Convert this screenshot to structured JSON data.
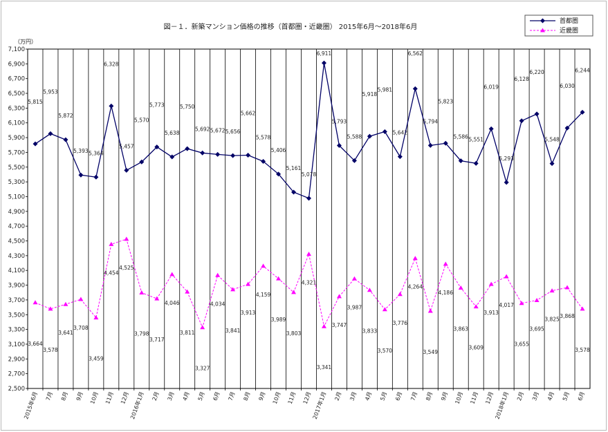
{
  "chart_data": {
    "type": "line",
    "title": "図－１．新築マンション価格の推移（首都圏・近畿圏） 2015年6月～2018年6月",
    "unit_label": "（万円）",
    "ylim": [
      2500,
      7100
    ],
    "y_ticks": [
      "7,100",
      "6,900",
      "6,700",
      "6,500",
      "6,300",
      "6,100",
      "5,900",
      "5,700",
      "5,500",
      "5,300",
      "5,100",
      "4,900",
      "4,700",
      "4,500",
      "4,300",
      "4,100",
      "3,900",
      "3,700",
      "3,500",
      "3,300",
      "3,100",
      "2,900",
      "2,700",
      "2,500"
    ],
    "categories": [
      "2015年6月",
      "7月",
      "8月",
      "9月",
      "10月",
      "11月",
      "12月",
      "2016年1月",
      "2月",
      "3月",
      "4月",
      "5月",
      "6月",
      "7月",
      "8月",
      "9月",
      "10月",
      "11月",
      "12月",
      "2017年1月",
      "2月",
      "3月",
      "4月",
      "5月",
      "6月",
      "7月",
      "8月",
      "9月",
      "10月",
      "11月",
      "12月",
      "2018年1月",
      "2月",
      "3月",
      "4月",
      "5月",
      "6月"
    ],
    "grid": "vertical",
    "legend_position": "top-right",
    "series": [
      {
        "name": "首都圏",
        "color": "#000066",
        "marker": "diamond",
        "line_style": "solid",
        "label_position": "above",
        "values": [
          5815,
          5953,
          5872,
          5393,
          5364,
          6328,
          5457,
          5570,
          5773,
          5638,
          5750,
          5692,
          5672,
          5656,
          5662,
          5578,
          5406,
          5161,
          5078,
          6911,
          5793,
          5588,
          5918,
          5981,
          5642,
          6562,
          5794,
          5823,
          5586,
          5551,
          6019,
          5293,
          6128,
          6220,
          5548,
          6030,
          6244
        ],
        "labels": [
          "5,815",
          "5,953",
          "5,872",
          "5,393",
          "5,364",
          "6,328",
          "5,457",
          "5,570",
          "5,773",
          "5,638",
          "5,750",
          "5,692",
          "5,672",
          "5,656",
          "5,662",
          "5,578",
          "5,406",
          "5,161",
          "5,078",
          "6,911",
          "5,793",
          "5,588",
          "5,918",
          "5,981",
          "5,642",
          "6,562",
          "5,794",
          "5,823",
          "5,586",
          "5,551",
          "6,019",
          "5,293",
          "6,128",
          "6,220",
          "5,548",
          "6,030",
          "6,244"
        ]
      },
      {
        "name": "近畿圏",
        "color": "#ff00ff",
        "marker": "triangle",
        "line_style": "dashed",
        "label_position": "below",
        "values": [
          3664,
          3578,
          3641,
          3708,
          3459,
          4454,
          4525,
          3798,
          3717,
          4046,
          3811,
          3327,
          4034,
          3841,
          3913,
          4159,
          3989,
          3803,
          4321,
          3341,
          3747,
          3987,
          3833,
          3570,
          3776,
          4264,
          3549,
          4186,
          3863,
          3609,
          3913,
          4017,
          3655,
          3695,
          3825,
          3868,
          3578
        ],
        "labels": [
          "3,664",
          "3,578",
          "3,641",
          "3,708",
          "3,459",
          "4,454",
          "4,525",
          "3,798",
          "3,717",
          "4,046",
          "3,811",
          "3,327",
          "4,034",
          "3,841",
          "3,913",
          "4,159",
          "3,989",
          "3,803",
          "4,321",
          "3,341",
          "3,747",
          "3,987",
          "3,833",
          "3,570",
          "3,776",
          "4,264",
          "3,549",
          "4,186",
          "3,863",
          "3,609",
          "3,913",
          "4,017",
          "3,655",
          "3,695",
          "3,825",
          "3,868",
          "3,578"
        ]
      }
    ]
  }
}
